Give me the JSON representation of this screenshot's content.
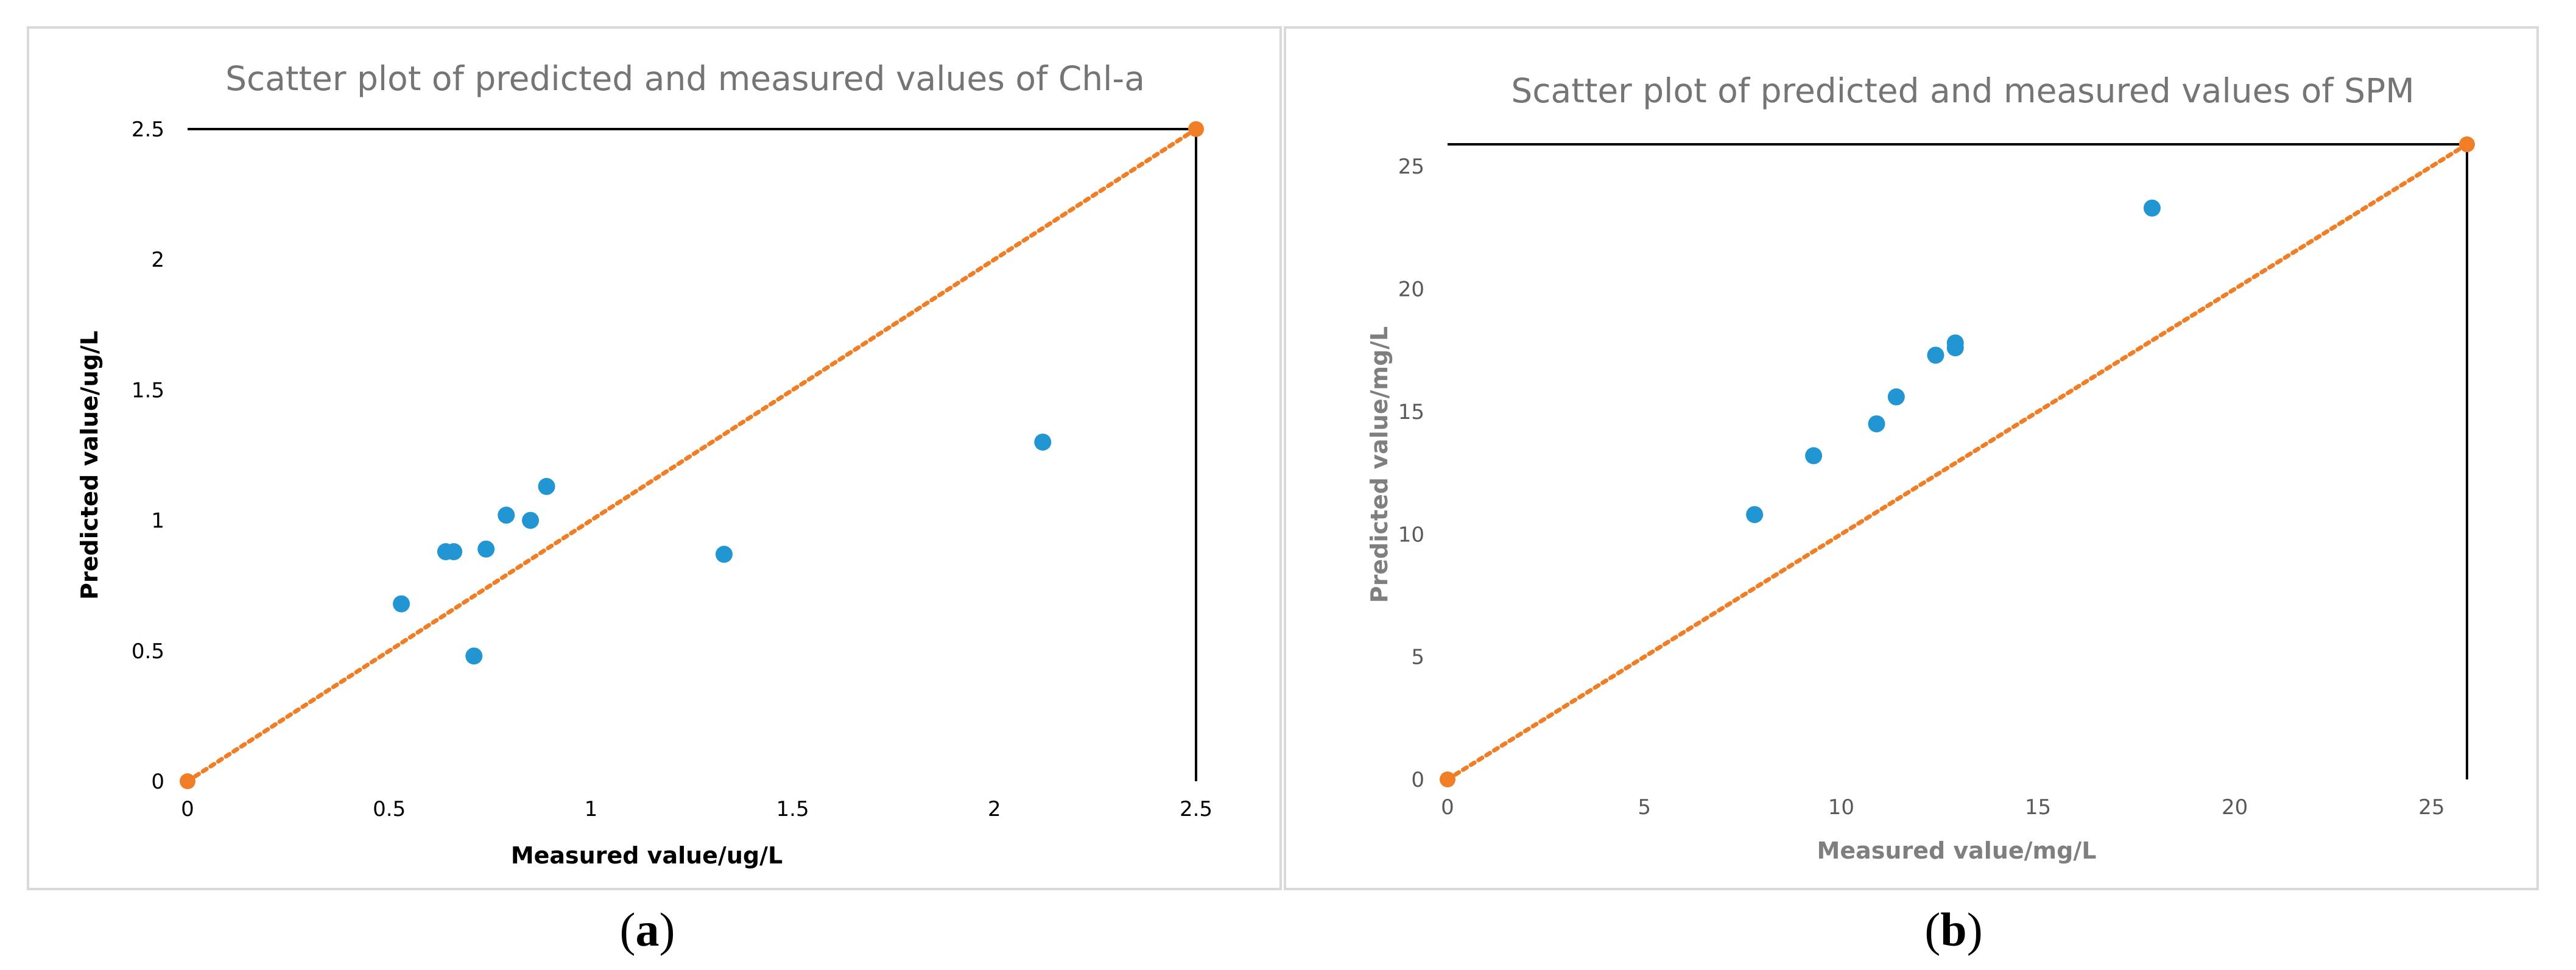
{
  "colors": {
    "points": "#2196d3",
    "reference_line": "#f07e26",
    "frame": "#000000",
    "panel_border": "#d9d9d9",
    "title_text": "#757575"
  },
  "chart_data": [
    {
      "type": "scatter",
      "caption": {
        "open": "(",
        "letter": "a",
        "close": ")"
      },
      "title": "Scatter plot of predicted and measured values of Chl-a",
      "xlabel": "Measured value/ug/L",
      "ylabel": "Predicted value/ug/L",
      "xlim": [
        0,
        2.5
      ],
      "ylim": [
        0,
        2.5
      ],
      "xticks": [
        "0",
        "0.5",
        "1",
        "1.5",
        "2",
        "2.5"
      ],
      "yticks": [
        "0",
        "0.5",
        "1",
        "1.5",
        "2",
        "2.5"
      ],
      "grid": false,
      "axis_label_color": "#000000",
      "tick_color": "#000000",
      "series": [
        {
          "points": [
            {
              "x": 0.53,
              "y": 0.68
            },
            {
              "x": 0.64,
              "y": 0.88
            },
            {
              "x": 0.66,
              "y": 0.88
            },
            {
              "x": 0.71,
              "y": 0.48
            },
            {
              "x": 0.74,
              "y": 0.89
            },
            {
              "x": 0.79,
              "y": 1.02
            },
            {
              "x": 0.85,
              "y": 1.0
            },
            {
              "x": 0.89,
              "y": 1.13
            },
            {
              "x": 1.33,
              "y": 0.87
            },
            {
              "x": 2.12,
              "y": 1.3
            }
          ]
        }
      ],
      "reference_line": {
        "from": [
          0,
          0
        ],
        "to": [
          2.5,
          2.5
        ]
      }
    },
    {
      "type": "scatter",
      "caption": {
        "open": "(",
        "letter": "b",
        "close": ")"
      },
      "title": "Scatter plot of predicted and measured values of SPM",
      "xlabel": "Measured value/mg/L",
      "ylabel": "Predicted value/mg/L",
      "xlim": [
        0,
        25.9
      ],
      "ylim": [
        0,
        25.9
      ],
      "xticks": [
        "0",
        "5",
        "10",
        "15",
        "20",
        "25"
      ],
      "yticks": [
        "0",
        "5",
        "10",
        "15",
        "20",
        "25"
      ],
      "grid": false,
      "axis_label_color": "#7f7f7f",
      "tick_color": "#595959",
      "series": [
        {
          "points": [
            {
              "x": 7.8,
              "y": 10.8
            },
            {
              "x": 9.3,
              "y": 13.2
            },
            {
              "x": 10.9,
              "y": 14.5
            },
            {
              "x": 11.4,
              "y": 15.6
            },
            {
              "x": 12.4,
              "y": 17.3
            },
            {
              "x": 12.9,
              "y": 17.6
            },
            {
              "x": 12.9,
              "y": 17.8
            },
            {
              "x": 17.9,
              "y": 23.3
            }
          ]
        }
      ],
      "reference_line": {
        "from": [
          0,
          0
        ],
        "to": [
          25.9,
          25.9
        ]
      }
    }
  ]
}
